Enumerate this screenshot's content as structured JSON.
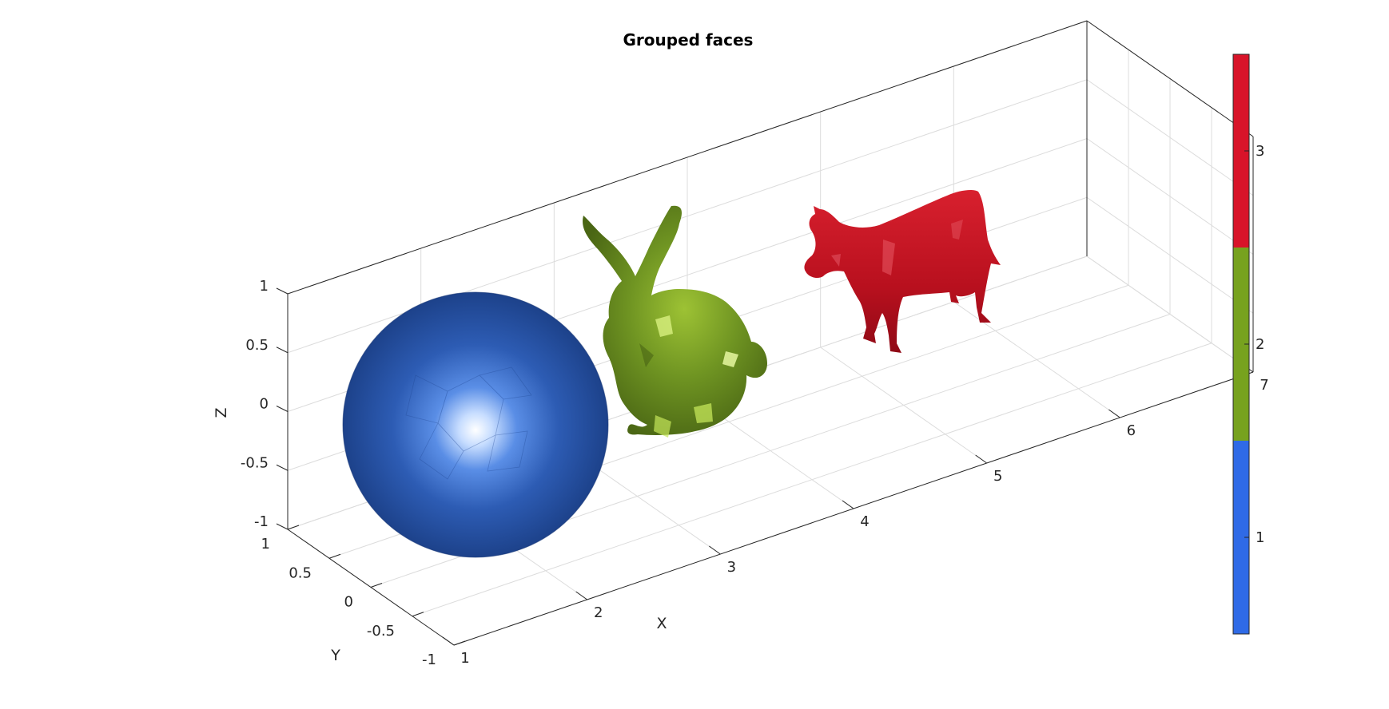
{
  "chart_data": {
    "type": "3d-surface",
    "title": "Grouped faces",
    "xlabel": "X",
    "ylabel": "Y",
    "zlabel": "Z",
    "xlim": [
      1,
      7
    ],
    "ylim": [
      -1,
      1
    ],
    "zlim": [
      -1,
      1
    ],
    "xticks": [
      "1",
      "2",
      "3",
      "4",
      "5",
      "6",
      "7"
    ],
    "yticks": [
      "-1",
      "-0.5",
      "0",
      "0.5",
      "1"
    ],
    "zticks": [
      "-1",
      "-0.5",
      "0",
      "0.5",
      "1"
    ],
    "grid": true,
    "objects": [
      {
        "shape": "sphere",
        "group": 1,
        "x_center": 2
      },
      {
        "shape": "bunny",
        "group": 2,
        "x_center": 4
      },
      {
        "shape": "cow",
        "group": 3,
        "x_center": 6
      }
    ],
    "colorbar": {
      "ticks": [
        "1",
        "2",
        "3"
      ],
      "colors": [
        "#2f6ae6",
        "#77a21e",
        "#d81429"
      ]
    }
  }
}
